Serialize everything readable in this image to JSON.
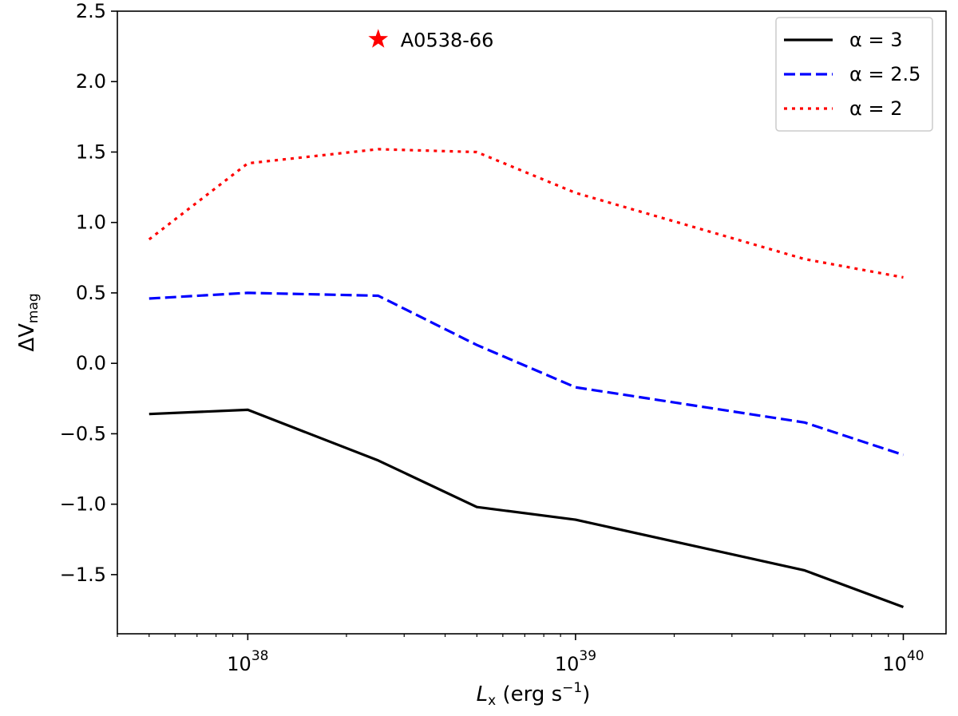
{
  "chart_data": {
    "type": "line",
    "x_scale": "log",
    "xlim": [
      4e+37,
      1.35e+40
    ],
    "ylim": [
      -1.92,
      2.5
    ],
    "xlabel": {
      "main": "L",
      "sub": "x",
      "rest": " (erg s",
      "sup": "−1",
      "close": ")"
    },
    "ylabel": {
      "main": "ΔV",
      "sub": "mag"
    },
    "y_ticks": [
      {
        "value": 2.5,
        "label": "2.5"
      },
      {
        "value": 2.0,
        "label": "2.0"
      },
      {
        "value": 1.5,
        "label": "1.5"
      },
      {
        "value": 1.0,
        "label": "1.0"
      },
      {
        "value": 0.5,
        "label": "0.5"
      },
      {
        "value": 0.0,
        "label": "0.0"
      },
      {
        "value": -0.5,
        "label": "−0.5"
      },
      {
        "value": -1.0,
        "label": "−1.0"
      },
      {
        "value": -1.5,
        "label": "−1.5"
      }
    ],
    "x_major_ticks": [
      {
        "value": 1e+38,
        "base": "10",
        "exp": "38"
      },
      {
        "value": 1e+39,
        "base": "10",
        "exp": "39"
      },
      {
        "value": 1e+40,
        "base": "10",
        "exp": "40"
      }
    ],
    "series": [
      {
        "name": "α = 3",
        "color": "#000000",
        "style": "solid",
        "x": [
          5e+37,
          1e+38,
          2.5e+38,
          5e+38,
          1e+39,
          5e+39,
          1e+40
        ],
        "y": [
          -0.36,
          -0.33,
          -0.69,
          -1.02,
          -1.11,
          -1.47,
          -1.73
        ]
      },
      {
        "name": "α = 2.5",
        "color": "#0000ff",
        "style": "dashed",
        "x": [
          5e+37,
          1e+38,
          2.5e+38,
          5e+38,
          1e+39,
          5e+39,
          1e+40
        ],
        "y": [
          0.46,
          0.5,
          0.48,
          0.13,
          -0.17,
          -0.42,
          -0.65
        ]
      },
      {
        "name": "α = 2",
        "color": "#ff0000",
        "style": "dotted",
        "x": [
          5e+37,
          1e+38,
          2.5e+38,
          5e+38,
          1e+39,
          5e+39,
          1e+40
        ],
        "y": [
          0.88,
          1.42,
          1.52,
          1.5,
          1.21,
          0.74,
          0.61
        ]
      }
    ],
    "annotations": [
      {
        "label": "A0538-66",
        "x": 2.5e+38,
        "y": 2.3,
        "marker": "star",
        "color": "#ff0000"
      }
    ],
    "legend": {
      "position": "top-right"
    }
  }
}
